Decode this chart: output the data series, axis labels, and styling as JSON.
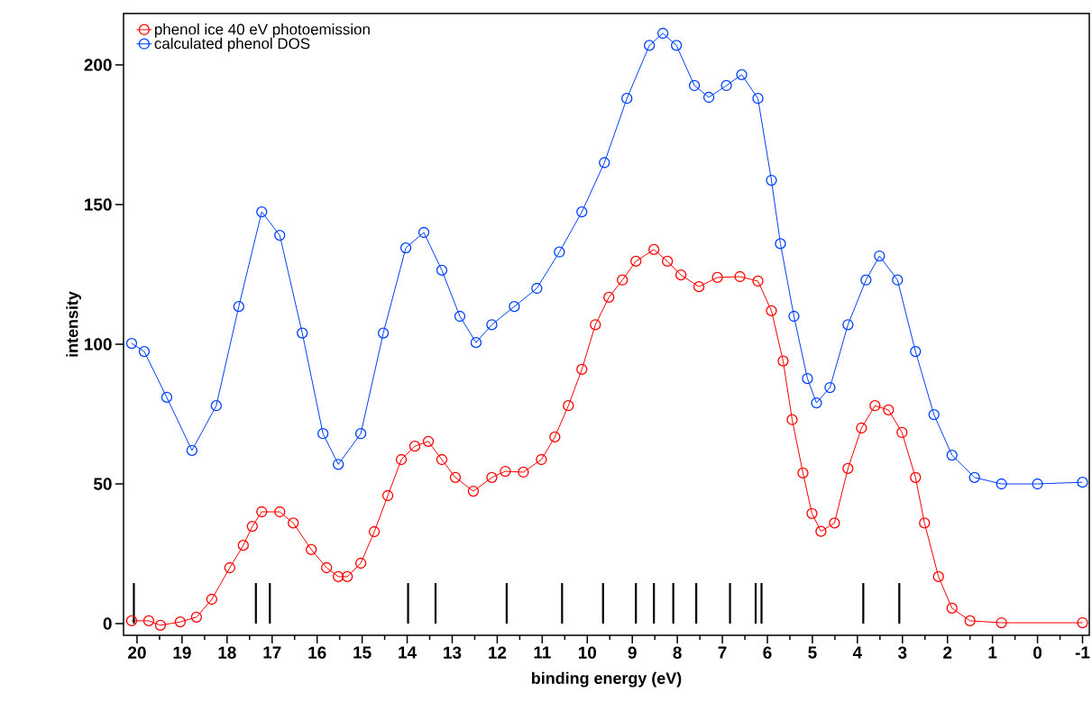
{
  "chart_data": {
    "type": "line",
    "xlabel": "binding energy (eV)",
    "ylabel": "intensity",
    "xlim": [
      20.3,
      -1.15
    ],
    "ylim": [
      -4.2,
      218.4
    ],
    "xticks": [
      20,
      {
        "value": 19.5,
        "label": null
      },
      19,
      {
        "value": 18.5,
        "label": null
      },
      18,
      {
        "value": 17.5,
        "label": null
      },
      17,
      {
        "value": 16.5,
        "label": null
      },
      16,
      {
        "value": 15.5,
        "label": null
      },
      15,
      {
        "value": 14.5,
        "label": null
      },
      14,
      {
        "value": 13.5,
        "label": null
      },
      13,
      {
        "value": 12.5,
        "label": null
      },
      12,
      {
        "value": 11.5,
        "label": null
      },
      11,
      {
        "value": 10.5,
        "label": null
      },
      10,
      {
        "value": 9.5,
        "label": null
      },
      9,
      {
        "value": 8.5,
        "label": null
      },
      8,
      {
        "value": 7.5,
        "label": null
      },
      7,
      {
        "value": 6.5,
        "label": null
      },
      6,
      {
        "value": 5.5,
        "label": null
      },
      5,
      {
        "value": 4.5,
        "label": null
      },
      4,
      {
        "value": 3.5,
        "label": null
      },
      3,
      {
        "value": 2.5,
        "label": null
      },
      2,
      {
        "value": 1.5,
        "label": null
      },
      1,
      {
        "value": 0.5,
        "label": null
      },
      0,
      {
        "value": -0.5,
        "label": null
      },
      -1
    ],
    "yticks": [
      0,
      50,
      100,
      150,
      200
    ],
    "legend": "top left",
    "marker": "circle",
    "line_style": "solid",
    "grid": false,
    "series": [
      {
        "name": "phenol ice 40 eV photoemission",
        "color": "#ff0000",
        "x": [
          20.12,
          19.74,
          19.48,
          19.04,
          18.68,
          18.34,
          17.94,
          17.64,
          17.44,
          17.23,
          16.83,
          16.53,
          16.13,
          15.79,
          15.53,
          15.33,
          15.03,
          14.73,
          14.43,
          14.13,
          13.83,
          13.53,
          13.23,
          12.93,
          12.53,
          12.12,
          11.82,
          11.42,
          11.02,
          10.72,
          10.42,
          10.12,
          9.82,
          9.52,
          9.22,
          8.92,
          8.52,
          8.22,
          7.92,
          7.52,
          7.11,
          6.61,
          6.21,
          5.91,
          5.65,
          5.45,
          5.21,
          5.01,
          4.81,
          4.51,
          4.21,
          3.91,
          3.61,
          3.31,
          3.01,
          2.71,
          2.51,
          2.2,
          1.9,
          1.5,
          0.8,
          -1.0
        ],
        "values": [
          1,
          1,
          -0.6,
          0.6,
          2.3,
          8.7,
          20,
          28,
          34.8,
          40,
          40,
          36,
          26.5,
          20,
          16.8,
          16.8,
          21.6,
          32.9,
          45.8,
          58.7,
          63.5,
          65.2,
          58.7,
          52.3,
          47.4,
          52.3,
          54.5,
          54.2,
          58.7,
          66.8,
          78,
          91,
          107,
          116.8,
          123,
          129.7,
          133.9,
          129.7,
          124.8,
          120.6,
          123.9,
          124.2,
          122.6,
          112,
          94,
          73,
          53.9,
          39.4,
          33,
          36,
          55.5,
          70,
          78,
          76.5,
          68.4,
          52.3,
          36,
          16.8,
          5.5,
          1,
          0.3,
          0.3
        ]
      },
      {
        "name": "calculated phenol DOS",
        "color": "#0040ff",
        "x": [
          20.12,
          19.84,
          19.34,
          18.78,
          18.24,
          17.74,
          17.23,
          16.83,
          16.33,
          15.87,
          15.53,
          15.03,
          14.53,
          14.03,
          13.63,
          13.23,
          12.83,
          12.47,
          12.12,
          11.62,
          11.12,
          10.62,
          10.12,
          9.62,
          9.12,
          8.62,
          8.32,
          8.02,
          7.62,
          7.3,
          6.91,
          6.57,
          6.21,
          5.91,
          5.71,
          5.41,
          5.11,
          4.91,
          4.61,
          4.21,
          3.81,
          3.51,
          3.11,
          2.71,
          2.3,
          1.9,
          1.4,
          0.8,
          0,
          -1.0
        ],
        "values": [
          100.3,
          97.4,
          81,
          62,
          78,
          113.5,
          147.4,
          139,
          104,
          68,
          57,
          68,
          104,
          134.5,
          140,
          126.5,
          110,
          100.6,
          107,
          113.5,
          120,
          133,
          147.4,
          165,
          188,
          207,
          211.3,
          207,
          192.6,
          188.4,
          192.6,
          196.5,
          188,
          158.7,
          136,
          110,
          87.7,
          79,
          84.5,
          107,
          123,
          131.6,
          123,
          97.4,
          74.8,
          60.3,
          52.3,
          50,
          50,
          50.6
        ]
      },
      {
        "type": "bar",
        "color": "#000000",
        "x": [
          20.07,
          17.36,
          17.05,
          13.98,
          13.37,
          11.79,
          10.56,
          9.65,
          8.92,
          8.52,
          8.09,
          7.58,
          6.83,
          6.26,
          6.13,
          3.87,
          3.07
        ],
        "values": [
          14.5,
          14.5,
          14.5,
          14.5,
          14.5,
          14.5,
          14.5,
          14.5,
          14.5,
          14.5,
          14.5,
          14.5,
          14.5,
          14.5,
          14.5,
          14.5,
          14.5
        ]
      }
    ]
  }
}
